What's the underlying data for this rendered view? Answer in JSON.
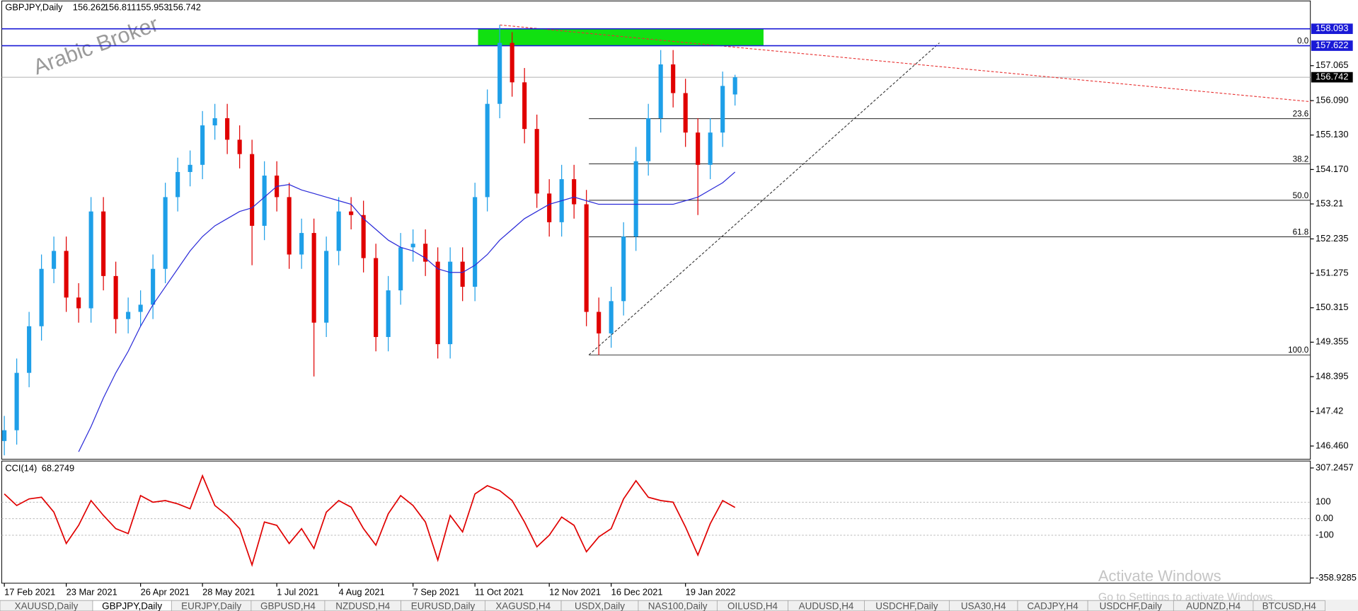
{
  "header": {
    "symbol": "GBPJPY,Daily",
    "ohlc": [
      156.262,
      156.811,
      155.953,
      156.742
    ]
  },
  "watermark": "Arabic Broker",
  "chart_data": [
    {
      "type": "candlestick",
      "categories": [
        "17 Feb 2021",
        null,
        null,
        null,
        null,
        "23 Mar 2021",
        null,
        null,
        null,
        null,
        null,
        "26 Apr 2021",
        null,
        null,
        null,
        null,
        "28 May 2021",
        null,
        null,
        null,
        null,
        null,
        "1 Jul 2021",
        null,
        null,
        null,
        null,
        "4 Aug 2021",
        null,
        null,
        null,
        null,
        null,
        "7 Sep 2021",
        null,
        null,
        null,
        null,
        "11 Oct 2021",
        null,
        null,
        null,
        null,
        null,
        "12 Nov 2021",
        null,
        null,
        null,
        null,
        "16 Dec 2021",
        null,
        null,
        null,
        null,
        null,
        "19 Jan 2022",
        null,
        null,
        null,
        null
      ],
      "open": [
        146.6,
        146.9,
        148.5,
        149.8,
        151.4,
        151.9,
        150.6,
        150.3,
        153.0,
        151.2,
        150.0,
        150.2,
        150.4,
        151.4,
        153.4,
        154.1,
        154.3,
        155.4,
        155.6,
        155.0,
        154.6,
        152.6,
        154.0,
        153.4,
        151.8,
        152.4,
        149.9,
        151.9,
        153.0,
        152.9,
        151.7,
        149.5,
        150.8,
        152.0,
        152.1,
        151.6,
        149.3,
        151.6,
        150.9,
        153.4,
        156.0,
        157.7,
        156.6,
        155.3,
        153.5,
        152.7,
        153.9,
        153.2,
        150.2,
        149.6,
        150.5,
        152.3,
        154.4,
        155.6,
        157.1,
        156.3,
        155.2,
        154.3,
        155.2,
        156.262
      ],
      "high": [
        147.3,
        148.9,
        150.2,
        151.8,
        152.3,
        152.3,
        151.0,
        153.4,
        153.4,
        151.6,
        150.6,
        150.8,
        151.8,
        153.8,
        154.5,
        154.7,
        155.8,
        156.0,
        156.0,
        155.4,
        155.0,
        154.4,
        154.4,
        153.8,
        152.8,
        152.8,
        152.3,
        153.4,
        153.4,
        153.3,
        152.1,
        151.2,
        152.4,
        152.5,
        152.5,
        152.0,
        152.0,
        152.0,
        153.8,
        156.4,
        158.2,
        158.0,
        157.0,
        155.7,
        153.9,
        154.3,
        154.3,
        153.6,
        150.6,
        150.9,
        152.7,
        154.8,
        156.0,
        157.5,
        157.5,
        156.7,
        155.6,
        155.6,
        156.9,
        156.811
      ],
      "low": [
        146.2,
        146.5,
        148.1,
        149.4,
        151.0,
        150.2,
        149.9,
        149.9,
        150.8,
        149.6,
        149.6,
        149.8,
        150.0,
        151.0,
        153.0,
        153.7,
        153.9,
        155.0,
        154.6,
        154.2,
        151.5,
        152.2,
        153.0,
        151.4,
        151.4,
        148.4,
        149.5,
        151.5,
        152.5,
        151.3,
        149.1,
        149.1,
        150.4,
        151.6,
        151.2,
        148.9,
        148.9,
        150.5,
        150.5,
        153.0,
        155.6,
        156.2,
        154.9,
        153.1,
        152.3,
        152.3,
        152.8,
        149.8,
        149.0,
        149.2,
        150.1,
        151.9,
        154.0,
        155.2,
        155.9,
        154.8,
        152.9,
        153.9,
        154.8,
        155.953
      ],
      "close": [
        146.9,
        148.5,
        149.8,
        151.4,
        151.9,
        150.6,
        150.3,
        153.0,
        151.2,
        150.0,
        150.2,
        150.4,
        151.4,
        153.4,
        154.1,
        154.3,
        155.4,
        155.6,
        155.0,
        154.6,
        152.6,
        154.0,
        153.4,
        151.8,
        152.4,
        149.9,
        151.9,
        153.0,
        152.9,
        151.7,
        149.5,
        150.8,
        152.0,
        152.1,
        151.6,
        149.3,
        151.6,
        150.9,
        153.4,
        156.0,
        157.7,
        156.6,
        155.3,
        153.5,
        152.7,
        153.9,
        153.2,
        150.2,
        149.6,
        150.5,
        152.3,
        154.4,
        155.6,
        157.1,
        156.3,
        155.2,
        154.3,
        155.2,
        156.5,
        156.742
      ],
      "up_color": "#1e9fe8",
      "down_color": "#e00000",
      "moving_average": {
        "color": "#2a2ad8",
        "values": [
          null,
          null,
          null,
          null,
          null,
          null,
          146.3,
          147.0,
          147.8,
          148.5,
          149.1,
          149.8,
          150.4,
          150.9,
          151.4,
          151.9,
          152.3,
          152.6,
          152.8,
          153.0,
          153.1,
          153.4,
          153.7,
          153.75,
          153.6,
          153.5,
          153.4,
          153.3,
          153.2,
          152.8,
          152.5,
          152.2,
          152.0,
          151.9,
          151.7,
          151.4,
          151.3,
          151.3,
          151.5,
          151.8,
          152.2,
          152.5,
          152.8,
          153.0,
          153.2,
          153.3,
          153.4,
          153.3,
          153.2,
          153.2,
          153.2,
          153.2,
          153.2,
          153.2,
          153.2,
          153.3,
          153.4,
          153.6,
          153.8,
          154.1
        ]
      },
      "ylim": [
        146.09,
        158.29
      ],
      "yticks": [
        {
          "value": 146.46,
          "label": "146.460"
        },
        147.42,
        148.395,
        149.355,
        150.315,
        151.275,
        152.235,
        153.21,
        {
          "value": 154.17,
          "label": "154.170"
        },
        {
          "value": 155.13,
          "label": "155.130"
        },
        {
          "value": 156.09,
          "label": "156.090"
        },
        157.065
      ],
      "hlines": [
        {
          "value": 158.093,
          "color": "#1a1ad6"
        },
        {
          "value": 157.622,
          "color": "#1a1ad6"
        }
      ],
      "current_price": {
        "value": 156.742,
        "color": "#000000"
      },
      "zone": {
        "x": [
          38.25,
          61.3
        ],
        "y": [
          157.622,
          158.093
        ],
        "color": "#11e011"
      },
      "trendlines": [
        {
          "x": [
            40,
            105.5
          ],
          "y": [
            158.2,
            156.06
          ],
          "color": "#e83030"
        },
        {
          "x": [
            47.2,
            75.5
          ],
          "y": [
            149.0,
            157.7
          ],
          "color": "#333333"
        }
      ],
      "fibo": {
        "x": 47.2,
        "high": 157.622,
        "low": 149.0,
        "levels": [
          {
            "value": 0,
            "label": "0.0"
          },
          23.6,
          38.2,
          {
            "value": 50,
            "label": "50.0"
          },
          61.8,
          {
            "value": 100,
            "label": "100.0"
          }
        ]
      }
    },
    {
      "type": "line",
      "name": "CCI(14)",
      "last": 68.2749,
      "color": "#e00000",
      "values": [
        150,
        80,
        120,
        130,
        40,
        -150,
        -40,
        110,
        20,
        -60,
        -90,
        140,
        100,
        110,
        90,
        60,
        260,
        80,
        20,
        -60,
        -280,
        -20,
        -40,
        -150,
        -60,
        -180,
        40,
        110,
        70,
        -60,
        -160,
        30,
        140,
        80,
        -20,
        -250,
        20,
        -80,
        150,
        200,
        170,
        110,
        -20,
        -170,
        -100,
        10,
        -40,
        -200,
        -110,
        -60,
        120,
        230,
        130,
        110,
        100,
        -50,
        -220,
        -30,
        110,
        68.2749
      ],
      "ylim": [
        -358.9285,
        307.2457
      ],
      "yticks": [
        307.2457,
        100,
        {
          "value": 0,
          "label": "0.00"
        },
        -100,
        -358.9285
      ]
    }
  ],
  "tabs": [
    "XAUUSD,Daily",
    "GBPJPY,Daily",
    "EURJPY,Daily",
    "GBPUSD,H4",
    "NZDUSD,H4",
    "EURUSD,Daily",
    "XAGUSD,H4",
    "USDX,Daily",
    "NAS100,Daily",
    "OILUSD,H4",
    "AUDUSD,H4",
    "USDCHF,Daily",
    "USA30,H4",
    "CADJPY,H4",
    "USDCHF,Daily",
    "AUDNZD,H4",
    "BTCUSD,H4"
  ],
  "active_tab": "GBPJPY,Daily",
  "activation": {
    "title": "Activate Windows",
    "text": "Go to Settings to activate Windows."
  }
}
